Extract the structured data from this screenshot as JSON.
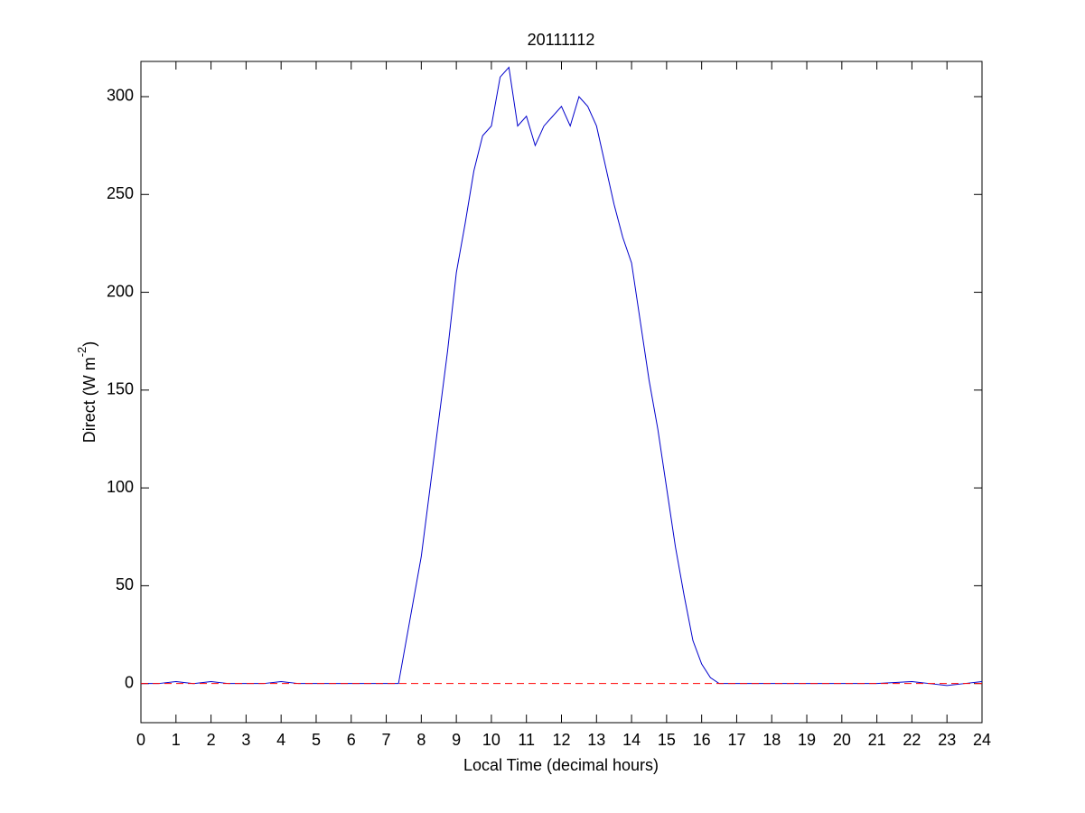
{
  "chart_data": {
    "type": "line",
    "title": "20111112",
    "xlabel": "Local Time (decimal hours)",
    "ylabel": [
      "Direct (W m",
      "-2",
      ")"
    ],
    "x": [
      0,
      0.5,
      1,
      1.5,
      2,
      2.5,
      3,
      3.5,
      4,
      4.5,
      5,
      6,
      7,
      7.35,
      7.5,
      7.75,
      8,
      8.25,
      8.5,
      8.75,
      9,
      9.25,
      9.5,
      9.75,
      10,
      10.25,
      10.5,
      10.75,
      11,
      11.25,
      11.5,
      11.75,
      12,
      12.25,
      12.5,
      12.75,
      13,
      13.25,
      13.5,
      13.75,
      14,
      14.25,
      14.5,
      14.75,
      15,
      15.25,
      15.5,
      15.75,
      16,
      16.25,
      16.5,
      17,
      18,
      19,
      20,
      21,
      22,
      22.5,
      23,
      23.5,
      24
    ],
    "series": [
      {
        "name": "Direct",
        "color": "#0000cc",
        "values": [
          0,
          0,
          1,
          0,
          1,
          0,
          0,
          0,
          1,
          0,
          0,
          0,
          0,
          0,
          15,
          40,
          65,
          100,
          135,
          170,
          210,
          235,
          262,
          280,
          285,
          310,
          315,
          285,
          290,
          275,
          285,
          290,
          295,
          285,
          300,
          295,
          285,
          265,
          245,
          228,
          215,
          185,
          155,
          130,
          100,
          70,
          45,
          22,
          10,
          3,
          0,
          0,
          0,
          0,
          0,
          0,
          1,
          0,
          -1,
          0,
          1
        ]
      }
    ],
    "hline": {
      "value": 0,
      "color": "#ff0000",
      "dashed": true
    },
    "xlim": [
      0,
      24
    ],
    "xticks": [
      0,
      1,
      2,
      3,
      4,
      5,
      6,
      7,
      8,
      9,
      10,
      11,
      12,
      13,
      14,
      15,
      16,
      17,
      18,
      19,
      20,
      21,
      22,
      23,
      24
    ],
    "ylim": [
      -20,
      318
    ],
    "yticks": [
      0,
      50,
      100,
      150,
      200,
      250,
      300
    ]
  }
}
